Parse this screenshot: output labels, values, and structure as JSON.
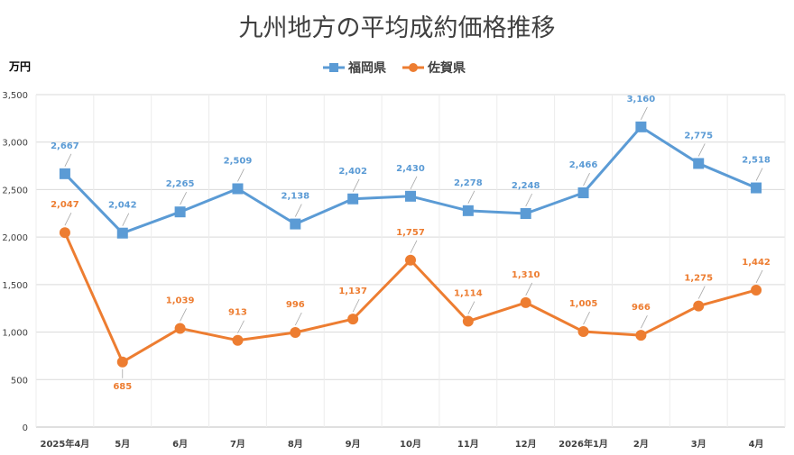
{
  "chart_data": {
    "type": "line",
    "title": "九州地方の平均成約価格推移",
    "unit_label": "万円",
    "categories": [
      "2025年4月",
      "5月",
      "6月",
      "7月",
      "8月",
      "9月",
      "10月",
      "11月",
      "12月",
      "2026年1月",
      "2月",
      "3月",
      "4月"
    ],
    "ylim": [
      0,
      3500
    ],
    "yticks": [
      "0",
      "500",
      "1,000",
      "1,500",
      "2,000",
      "2,500",
      "3,000",
      "3,500"
    ],
    "ytick_values": [
      0,
      500,
      1000,
      1500,
      2000,
      2500,
      3000,
      3500
    ],
    "grid": true,
    "legend_position": "top",
    "series": [
      {
        "name": "福岡県",
        "color": "#5B9BD5",
        "marker": "square",
        "values": [
          2667,
          2042,
          2265,
          2509,
          2138,
          2402,
          2430,
          2278,
          2248,
          2466,
          3160,
          2775,
          2518
        ],
        "labels": [
          "2,667",
          "2,042",
          "2,265",
          "2,509",
          "2,138",
          "2,402",
          "2,430",
          "2,278",
          "2,248",
          "2,466",
          "3,160",
          "2,775",
          "2,518"
        ]
      },
      {
        "name": "佐賀県",
        "color": "#ED7D31",
        "marker": "circle",
        "values": [
          2047,
          685,
          1039,
          913,
          996,
          1137,
          1757,
          1114,
          1310,
          1005,
          966,
          1275,
          1442
        ],
        "labels": [
          "2,047",
          "685",
          "1,039",
          "913",
          "996",
          "1,137",
          "1,757",
          "1,114",
          "1,310",
          "1,005",
          "966",
          "1,275",
          "1,442"
        ]
      }
    ]
  }
}
